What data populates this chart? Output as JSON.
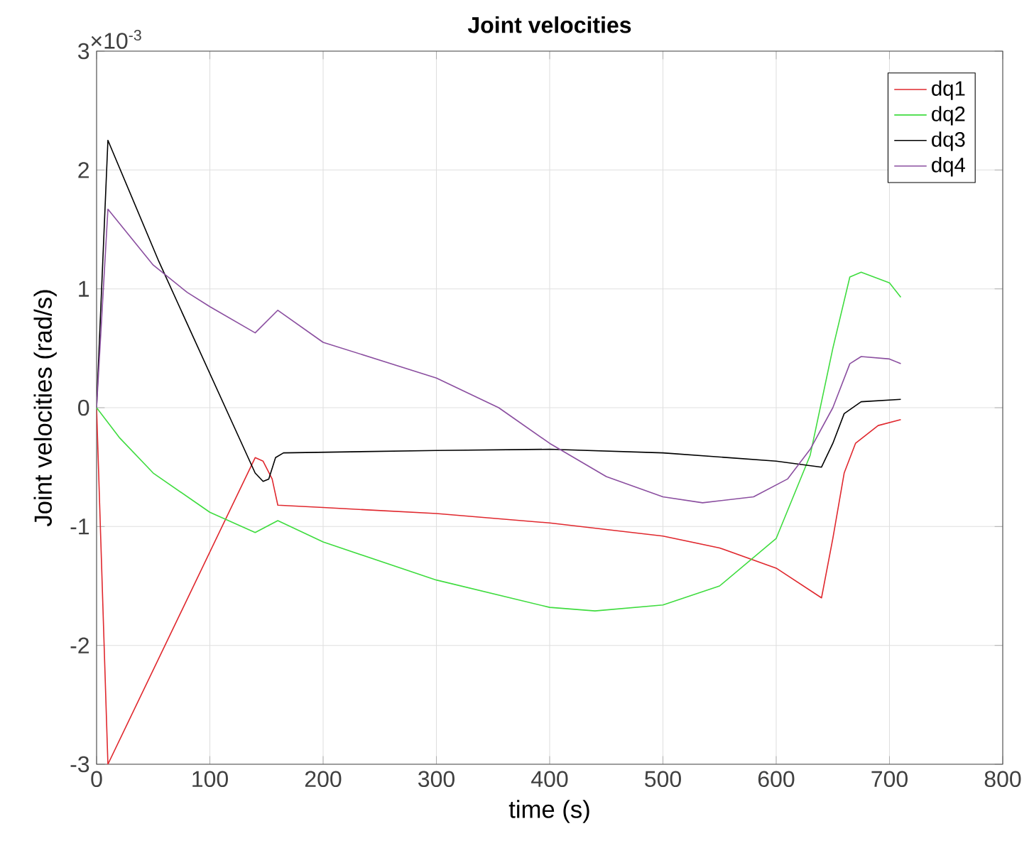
{
  "chart_data": {
    "type": "line",
    "title": "Joint velocities",
    "xlabel": "time (s)",
    "ylabel": "Joint velocities (rad/s)",
    "annotations": [
      "×10$^{-3}$"
    ],
    "xlim": [
      0,
      800
    ],
    "xticks": [
      0,
      100,
      200,
      300,
      400,
      500,
      600,
      700,
      800
    ],
    "ylim": [
      -3,
      3
    ],
    "yticks": [
      -3,
      -2,
      -1,
      0,
      1,
      2,
      3
    ],
    "grid": true,
    "legend": "top right",
    "marker": "none",
    "line_style": "solid",
    "series": [
      {
        "name": "dq1",
        "color": "#e0282e",
        "x": [
          0,
          10,
          140,
          147,
          155,
          160,
          200,
          300,
          400,
          500,
          550,
          600,
          640,
          650,
          660,
          670,
          690,
          710
        ],
        "values": [
          0,
          -3.0,
          -0.42,
          -0.45,
          -0.6,
          -0.82,
          -0.84,
          -0.89,
          -0.97,
          -1.08,
          -1.18,
          -1.35,
          -1.6,
          -1.1,
          -0.55,
          -0.3,
          -0.15,
          -0.1
        ]
      },
      {
        "name": "dq2",
        "color": "#3fdc3f",
        "x": [
          0,
          20,
          50,
          100,
          140,
          160,
          200,
          300,
          400,
          440,
          500,
          550,
          600,
          630,
          650,
          665,
          675,
          700,
          710
        ],
        "values": [
          0,
          -0.25,
          -0.55,
          -0.88,
          -1.05,
          -0.95,
          -1.13,
          -1.45,
          -1.68,
          -1.71,
          -1.66,
          -1.5,
          -1.1,
          -0.4,
          0.5,
          1.1,
          1.14,
          1.05,
          0.93
        ]
      },
      {
        "name": "dq3",
        "color": "#000000",
        "x": [
          0,
          10,
          55,
          140,
          147,
          152,
          158,
          165,
          300,
          400,
          500,
          600,
          640,
          650,
          660,
          675,
          710
        ],
        "values": [
          0,
          2.25,
          1.23,
          -0.55,
          -0.62,
          -0.6,
          -0.42,
          -0.38,
          -0.36,
          -0.35,
          -0.38,
          -0.45,
          -0.5,
          -0.3,
          -0.05,
          0.05,
          0.07
        ]
      },
      {
        "name": "dq4",
        "color": "#8b4fa0",
        "x": [
          0,
          10,
          50,
          80,
          100,
          140,
          160,
          200,
          300,
          355,
          400,
          450,
          500,
          535,
          580,
          610,
          630,
          650,
          665,
          675,
          700,
          710
        ],
        "values": [
          0,
          1.67,
          1.2,
          0.97,
          0.85,
          0.63,
          0.82,
          0.55,
          0.25,
          0,
          -0.3,
          -0.58,
          -0.75,
          -0.8,
          -0.75,
          -0.6,
          -0.35,
          0,
          0.37,
          0.43,
          0.41,
          0.37
        ]
      }
    ]
  }
}
